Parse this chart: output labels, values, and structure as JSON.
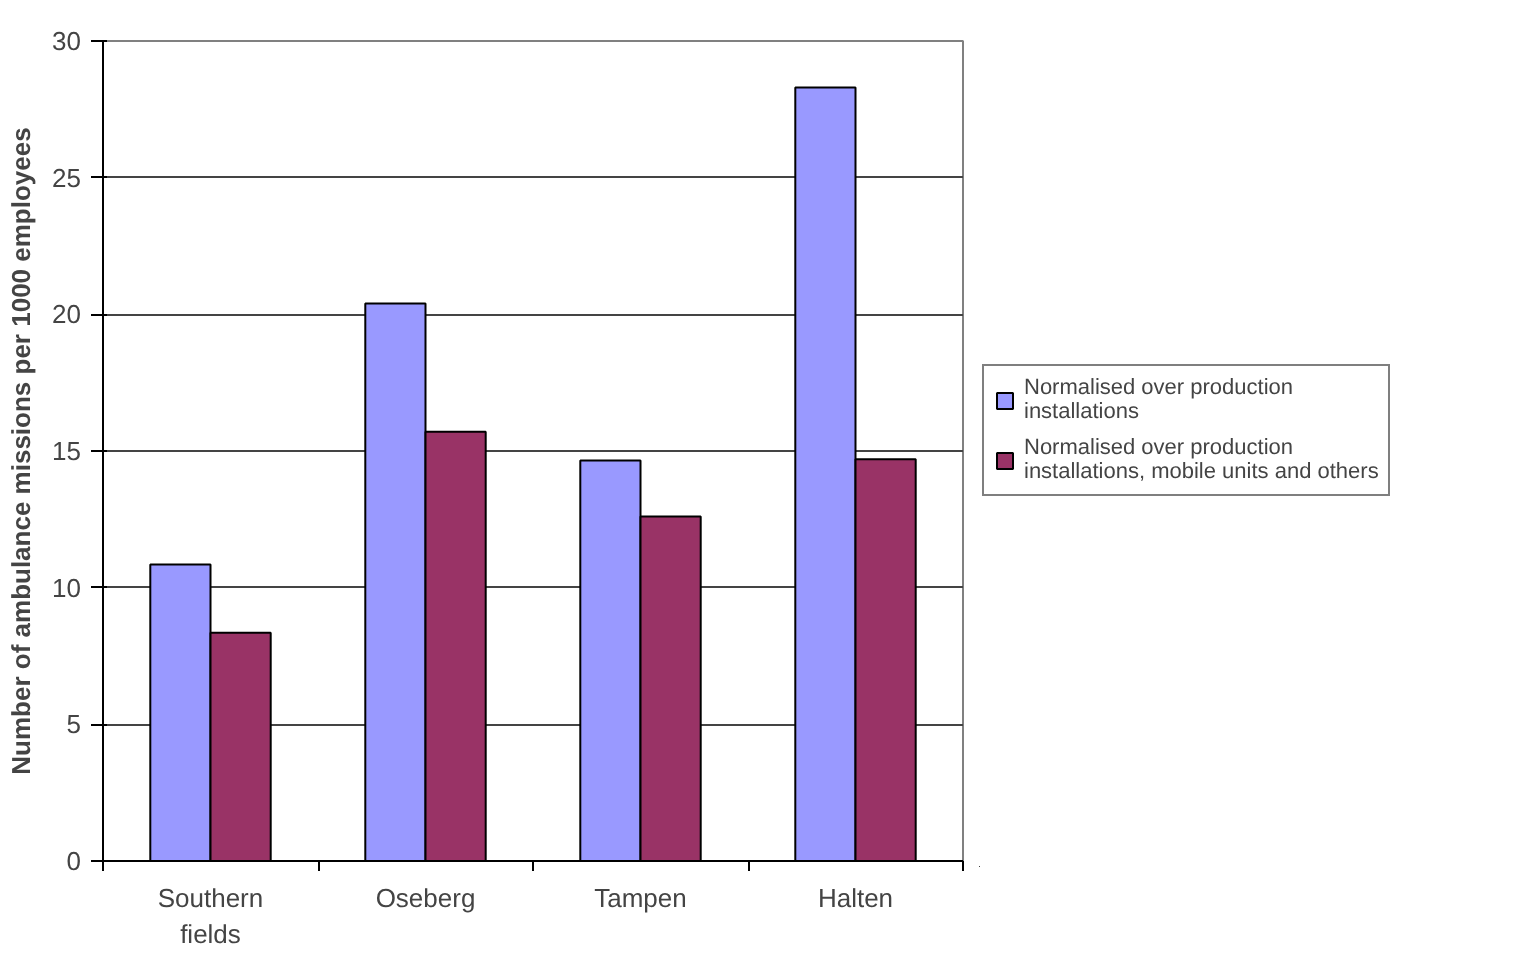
{
  "chart_data": {
    "type": "bar",
    "ylabel": "Number of ambulance missions per 1000 employees",
    "categories": [
      "Southern fields",
      "Oseberg",
      "Tampen",
      "Halten"
    ],
    "series": [
      {
        "name": "Normalised over production installations",
        "color": "#9999ff",
        "values": [
          10.85,
          20.4,
          14.65,
          28.3
        ]
      },
      {
        "name": "Normalised over production installations, mobile units and others",
        "color": "#993366",
        "values": [
          8.35,
          15.7,
          12.6,
          14.7
        ]
      }
    ],
    "ylim": [
      0,
      30
    ],
    "yticks": [
      0,
      5,
      10,
      15,
      20,
      25,
      30
    ],
    "grid": "y",
    "legend": "right"
  }
}
